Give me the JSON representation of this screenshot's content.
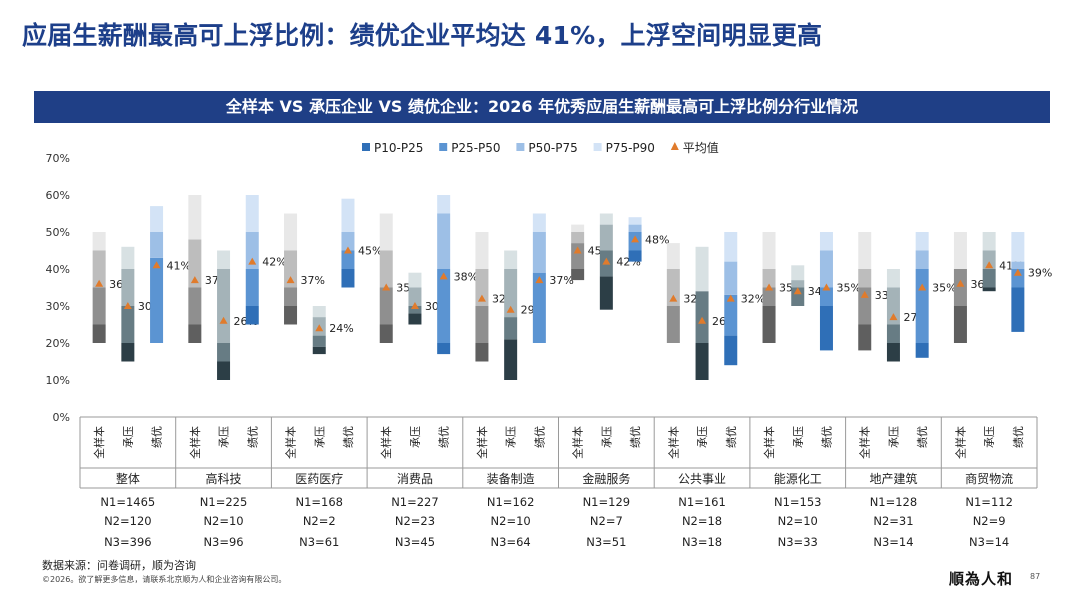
{
  "page": {
    "title": "应届生薪酬最高可上浮比例：绩优企业平均达 41%，上浮空间明显更高",
    "banner": "全样本 VS 承压企业 VS 绩优企业：2026 年优秀应届生薪酬最高可上浮比例分行业情况",
    "source": "数据来源：问卷调研，顺为咨询",
    "copyright": "©2026。欲了解更多信息，请联系北京顺为人和企业咨询有限公司。",
    "logo_text": "順為人和",
    "page_number": "87"
  },
  "chart_data": {
    "type": "floating-stacked-bar",
    "title": "",
    "ylabel": "",
    "ylim": [
      0,
      70
    ],
    "y_ticks": [
      "0%",
      "10%",
      "20%",
      "30%",
      "40%",
      "50%",
      "60%",
      "70%"
    ],
    "legend": [
      "P10-P25",
      "P25-P50",
      "P50-P75",
      "P75-P90",
      "平均值"
    ],
    "legend_position": "top",
    "sample_labels": [
      "全样本",
      "承压",
      "绩优"
    ],
    "count_prefixes": [
      "N1=",
      "N2=",
      "N3="
    ],
    "colors": {
      "全样本": [
        "#5f5f5f",
        "#8f8f8f",
        "#bdbdbd",
        "#e8e8e8"
      ],
      "承压": [
        "#2c3e46",
        "#677c84",
        "#a4b3b8",
        "#d8e1e3"
      ],
      "绩优": [
        "#2f6fb7",
        "#5b94d2",
        "#9dbfe6",
        "#d3e3f6"
      ],
      "mean": "#e07b2c"
    },
    "groups": [
      {
        "name": "整体",
        "n": [
          "1465",
          "120",
          "396"
        ],
        "bars": [
          {
            "p10": 20,
            "p25": 25,
            "p50": 35,
            "p75": 45,
            "p90": 50,
            "mean": 36,
            "label": "36%"
          },
          {
            "p10": 15,
            "p25": 20,
            "p50": 30,
            "p75": 40,
            "p90": 46,
            "mean": 30,
            "label": "30%"
          },
          {
            "p10": 20,
            "p25": 20,
            "p50": 43,
            "p75": 50,
            "p90": 57,
            "mean": 41,
            "label": "41%"
          }
        ]
      },
      {
        "name": "高科技",
        "n": [
          "225",
          "10",
          "96"
        ],
        "bars": [
          {
            "p10": 20,
            "p25": 25,
            "p50": 35,
            "p75": 48,
            "p90": 60,
            "mean": 37,
            "label": "37%"
          },
          {
            "p10": 10,
            "p25": 15,
            "p50": 20,
            "p75": 40,
            "p90": 45,
            "mean": 26,
            "label": "26%"
          },
          {
            "p10": 25,
            "p25": 30,
            "p50": 40,
            "p75": 50,
            "p90": 60,
            "mean": 42,
            "label": "42%"
          }
        ]
      },
      {
        "name": "医药医疗",
        "n": [
          "168",
          "2",
          "61"
        ],
        "bars": [
          {
            "p10": 25,
            "p25": 30,
            "p50": 35,
            "p75": 45,
            "p90": 55,
            "mean": 37,
            "label": "37%"
          },
          {
            "p10": 17,
            "p25": 19,
            "p50": 22,
            "p75": 27,
            "p90": 30,
            "mean": 24,
            "label": "24%"
          },
          {
            "p10": 35,
            "p25": 40,
            "p50": 45,
            "p75": 50,
            "p90": 59,
            "mean": 45,
            "label": "45%"
          }
        ]
      },
      {
        "name": "消费品",
        "n": [
          "227",
          "23",
          "45"
        ],
        "bars": [
          {
            "p10": 20,
            "p25": 25,
            "p50": 35,
            "p75": 45,
            "p90": 55,
            "mean": 35,
            "label": "35%"
          },
          {
            "p10": 25,
            "p25": 28,
            "p50": 30,
            "p75": 35,
            "p90": 39,
            "mean": 30,
            "label": "30%"
          },
          {
            "p10": 17,
            "p25": 20,
            "p50": 40,
            "p75": 55,
            "p90": 60,
            "mean": 38,
            "label": "38%"
          }
        ]
      },
      {
        "name": "装备制造",
        "n": [
          "162",
          "10",
          "64"
        ],
        "bars": [
          {
            "p10": 15,
            "p25": 20,
            "p50": 30,
            "p75": 40,
            "p90": 50,
            "mean": 32,
            "label": "32%"
          },
          {
            "p10": 10,
            "p25": 21,
            "p50": 27,
            "p75": 40,
            "p90": 45,
            "mean": 29,
            "label": "29%"
          },
          {
            "p10": 20,
            "p25": 20,
            "p50": 39,
            "p75": 50,
            "p90": 55,
            "mean": 37,
            "label": "37%"
          }
        ]
      },
      {
        "name": "金融服务",
        "n": [
          "129",
          "7",
          "51"
        ],
        "bars": [
          {
            "p10": 37,
            "p25": 40,
            "p50": 47,
            "p75": 50,
            "p90": 52,
            "mean": 45,
            "label": "45%"
          },
          {
            "p10": 29,
            "p25": 38,
            "p50": 45,
            "p75": 52,
            "p90": 55,
            "mean": 42,
            "label": "42%"
          },
          {
            "p10": 42,
            "p25": 45,
            "p50": 50,
            "p75": 52,
            "p90": 54,
            "mean": 48,
            "label": "48%"
          }
        ]
      },
      {
        "name": "公共事业",
        "n": [
          "161",
          "18",
          "18"
        ],
        "bars": [
          {
            "p10": 20,
            "p25": 20,
            "p50": 30,
            "p75": 40,
            "p90": 47,
            "mean": 32,
            "label": "32%"
          },
          {
            "p10": 10,
            "p25": 20,
            "p50": 34,
            "p75": 34,
            "p90": 46,
            "mean": 26,
            "label": "26%"
          },
          {
            "p10": 14,
            "p25": 22,
            "p50": 33,
            "p75": 42,
            "p90": 50,
            "mean": 32,
            "label": "32%"
          }
        ]
      },
      {
        "name": "能源化工",
        "n": [
          "153",
          "10",
          "33"
        ],
        "bars": [
          {
            "p10": 20,
            "p25": 30,
            "p50": 35,
            "p75": 40,
            "p90": 50,
            "mean": 35,
            "label": "35%"
          },
          {
            "p10": 30,
            "p25": 30,
            "p50": 35,
            "p75": 37,
            "p90": 41,
            "mean": 34,
            "label": "34%"
          },
          {
            "p10": 18,
            "p25": 30,
            "p50": 35,
            "p75": 45,
            "p90": 50,
            "mean": 35,
            "label": "35%"
          }
        ]
      },
      {
        "name": "地产建筑",
        "n": [
          "128",
          "31",
          "14"
        ],
        "bars": [
          {
            "p10": 18,
            "p25": 25,
            "p50": 35,
            "p75": 40,
            "p90": 50,
            "mean": 33,
            "label": "33%"
          },
          {
            "p10": 15,
            "p25": 20,
            "p50": 25,
            "p75": 35,
            "p90": 40,
            "mean": 27,
            "label": "27%"
          },
          {
            "p10": 16,
            "p25": 20,
            "p50": 40,
            "p75": 45,
            "p90": 50,
            "mean": 35,
            "label": "35%"
          }
        ]
      },
      {
        "name": "商贸物流",
        "n": [
          "112",
          "9",
          "14"
        ],
        "bars": [
          {
            "p10": 20,
            "p25": 30,
            "p50": 40,
            "p75": 40,
            "p90": 50,
            "mean": 36,
            "label": "36%"
          },
          {
            "p10": 34,
            "p25": 35,
            "p50": 40,
            "p75": 45,
            "p90": 50,
            "mean": 41,
            "label": "41%"
          },
          {
            "p10": 23,
            "p25": 35,
            "p50": 40,
            "p75": 42,
            "p90": 50,
            "mean": 39,
            "label": "39%"
          }
        ]
      }
    ]
  }
}
